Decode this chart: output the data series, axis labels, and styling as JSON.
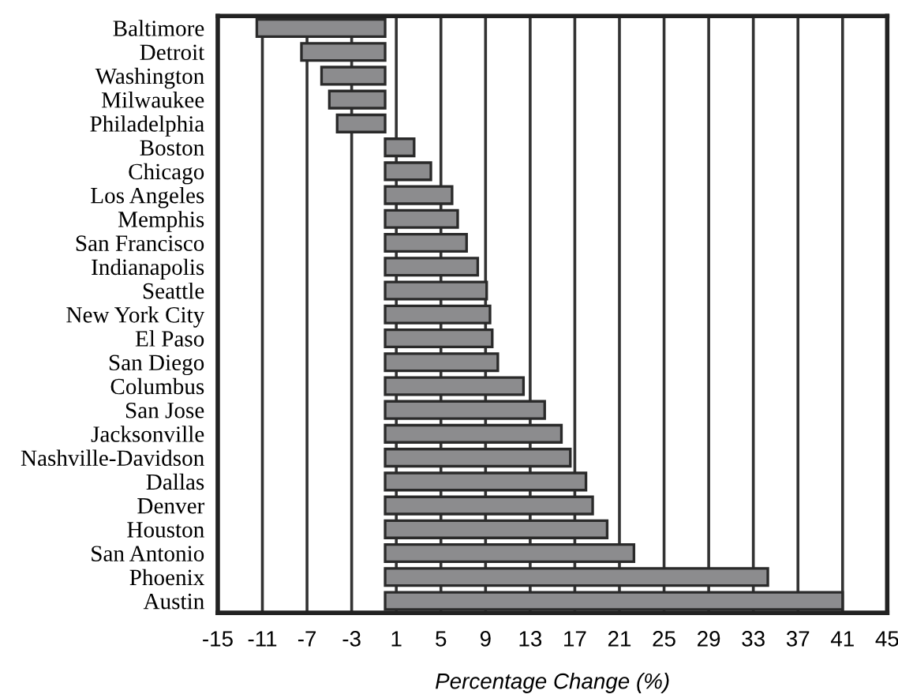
{
  "chart_data": {
    "type": "bar",
    "orientation": "horizontal",
    "xlabel": "Percentage Change (%)",
    "categories": [
      "Baltimore",
      "Detroit",
      "Washington",
      "Milwaukee",
      "Philadelphia",
      "Boston",
      "Chicago",
      "Los Angeles",
      "Memphis",
      "San Francisco",
      "Indianapolis",
      "Seattle",
      "New York City",
      "El Paso",
      "San Diego",
      "Columbus",
      "San Jose",
      "Jacksonville",
      "Nashville-Davidson",
      "Dallas",
      "Denver",
      "Houston",
      "San Antonio",
      "Phoenix",
      "Austin"
    ],
    "values": [
      -11.5,
      -7.5,
      -5.7,
      -5.0,
      -4.3,
      2.6,
      4.1,
      6.0,
      6.5,
      7.3,
      8.3,
      9.1,
      9.4,
      9.6,
      10.1,
      12.4,
      14.3,
      15.8,
      16.6,
      18.0,
      18.6,
      19.9,
      22.3,
      34.3,
      41.0
    ],
    "color": "#8c8c8e",
    "xlim": [
      -15,
      45
    ],
    "xticks": [
      -15,
      -11,
      -7,
      -3,
      1,
      5,
      9,
      13,
      17,
      21,
      25,
      29,
      33,
      37,
      41,
      45
    ],
    "grid": "x",
    "legend": false
  }
}
